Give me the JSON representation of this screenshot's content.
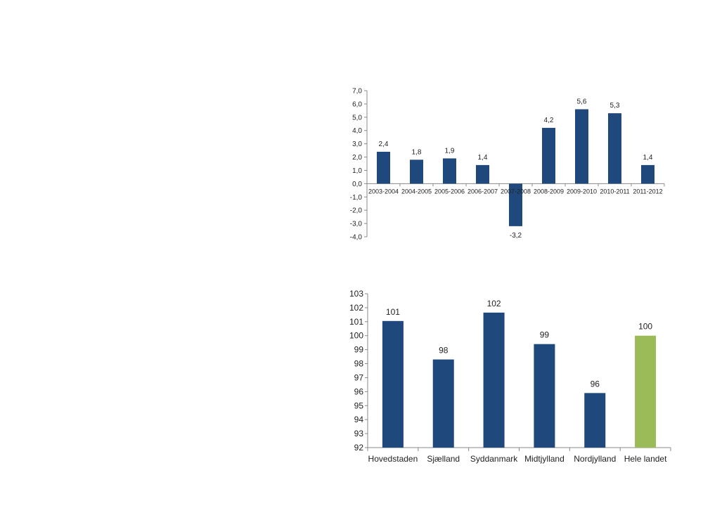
{
  "chart_data": [
    {
      "type": "bar",
      "categories": [
        "2003-2004",
        "2004-2005",
        "2005-2006",
        "2006-2007",
        "2007-2008",
        "2008-2009",
        "2009-2010",
        "2010-2011",
        "2011-2012"
      ],
      "values": [
        2.4,
        1.8,
        1.9,
        1.4,
        -3.2,
        4.2,
        5.6,
        5.3,
        1.4
      ],
      "data_labels": [
        "2,4",
        "1,8",
        "1,9",
        "1,4",
        "-3,2",
        "4,2",
        "5,6",
        "5,3",
        "1,4"
      ],
      "y_ticks": [
        "-4,0",
        "-3,0",
        "-2,0",
        "-1,0",
        "0,0",
        "1,0",
        "2,0",
        "3,0",
        "4,0",
        "5,0",
        "6,0",
        "7,0"
      ],
      "ylim": [
        -4,
        7
      ],
      "bar_color": "#1f497d",
      "grid": false,
      "legend": "none",
      "title": "",
      "xlabel": "",
      "ylabel": ""
    },
    {
      "type": "bar",
      "categories": [
        "Hovedstaden",
        "Sjælland",
        "Syddanmark",
        "Midtjylland",
        "Nordjylland",
        "Hele landet"
      ],
      "values": [
        101.05,
        98.3,
        101.65,
        99.4,
        95.9,
        100.0
      ],
      "data_labels": [
        "101",
        "98",
        "102",
        "99",
        "96",
        "100"
      ],
      "y_ticks": [
        "92",
        "93",
        "94",
        "95",
        "96",
        "97",
        "98",
        "99",
        "100",
        "101",
        "102",
        "103"
      ],
      "ylim": [
        92,
        103
      ],
      "bar_colors": [
        "#1f497d",
        "#1f497d",
        "#1f497d",
        "#1f497d",
        "#1f497d",
        "#9bbb59"
      ],
      "grid": false,
      "legend": "none",
      "title": "",
      "xlabel": "",
      "ylabel": ""
    }
  ]
}
